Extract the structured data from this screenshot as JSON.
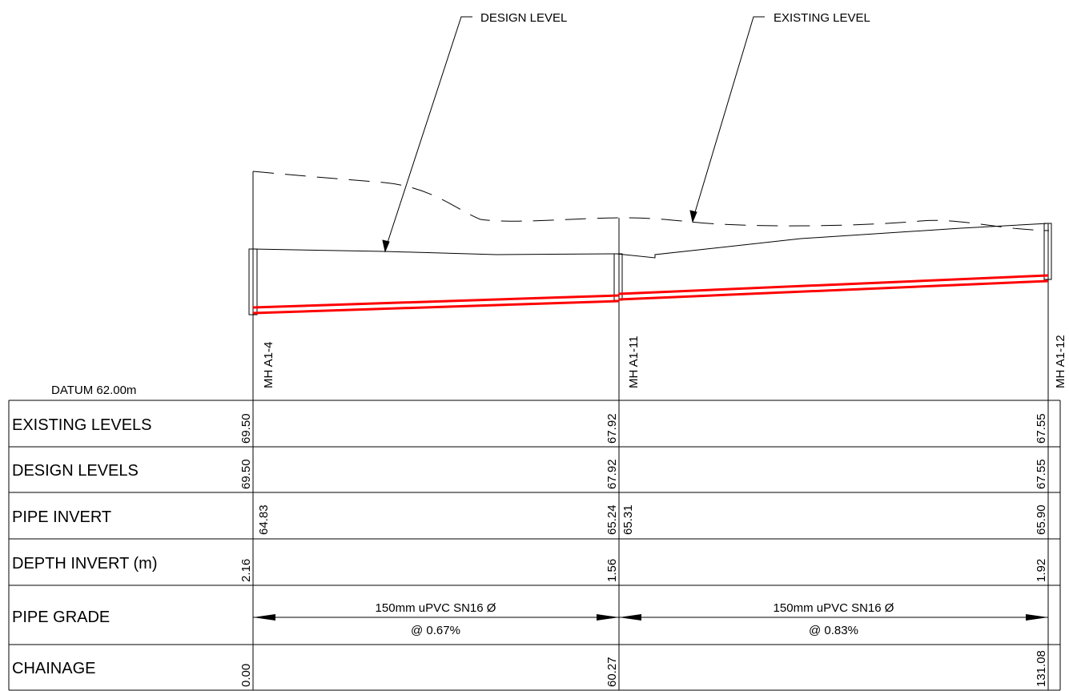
{
  "callouts": {
    "design_level": "DESIGN LEVEL",
    "existing_level": "EXISTING LEVEL"
  },
  "datum": "DATUM 62.00m",
  "manholes": [
    {
      "name": "MH A1-4"
    },
    {
      "name": "MH A1-11"
    },
    {
      "name": "MH A1-12"
    }
  ],
  "rows": {
    "existing_levels": {
      "label": "EXISTING LEVELS",
      "values": [
        "69.50",
        "67.92",
        "67.55"
      ]
    },
    "design_levels": {
      "label": "DESIGN LEVELS",
      "values": [
        "69.50",
        "67.92",
        "67.55"
      ]
    },
    "pipe_invert": {
      "label": "PIPE INVERT",
      "values": [
        "64.83",
        "65.24",
        "65.31",
        "65.90"
      ]
    },
    "depth_invert": {
      "label": "DEPTH INVERT (m)",
      "values": [
        "2.16",
        "1.56",
        "1.92"
      ]
    },
    "pipe_grade": {
      "label": "PIPE GRADE",
      "segments": [
        {
          "pipe": "150mm uPVC SN16 Ø",
          "grade": "@ 0.67%"
        },
        {
          "pipe": "150mm uPVC SN16 Ø",
          "grade": "@ 0.83%"
        }
      ]
    },
    "chainage": {
      "label": "CHAINAGE",
      "values": [
        "0.00",
        "60.27",
        "131.08"
      ]
    }
  },
  "colors": {
    "pipe": "#ff0000",
    "line": "#000000"
  }
}
